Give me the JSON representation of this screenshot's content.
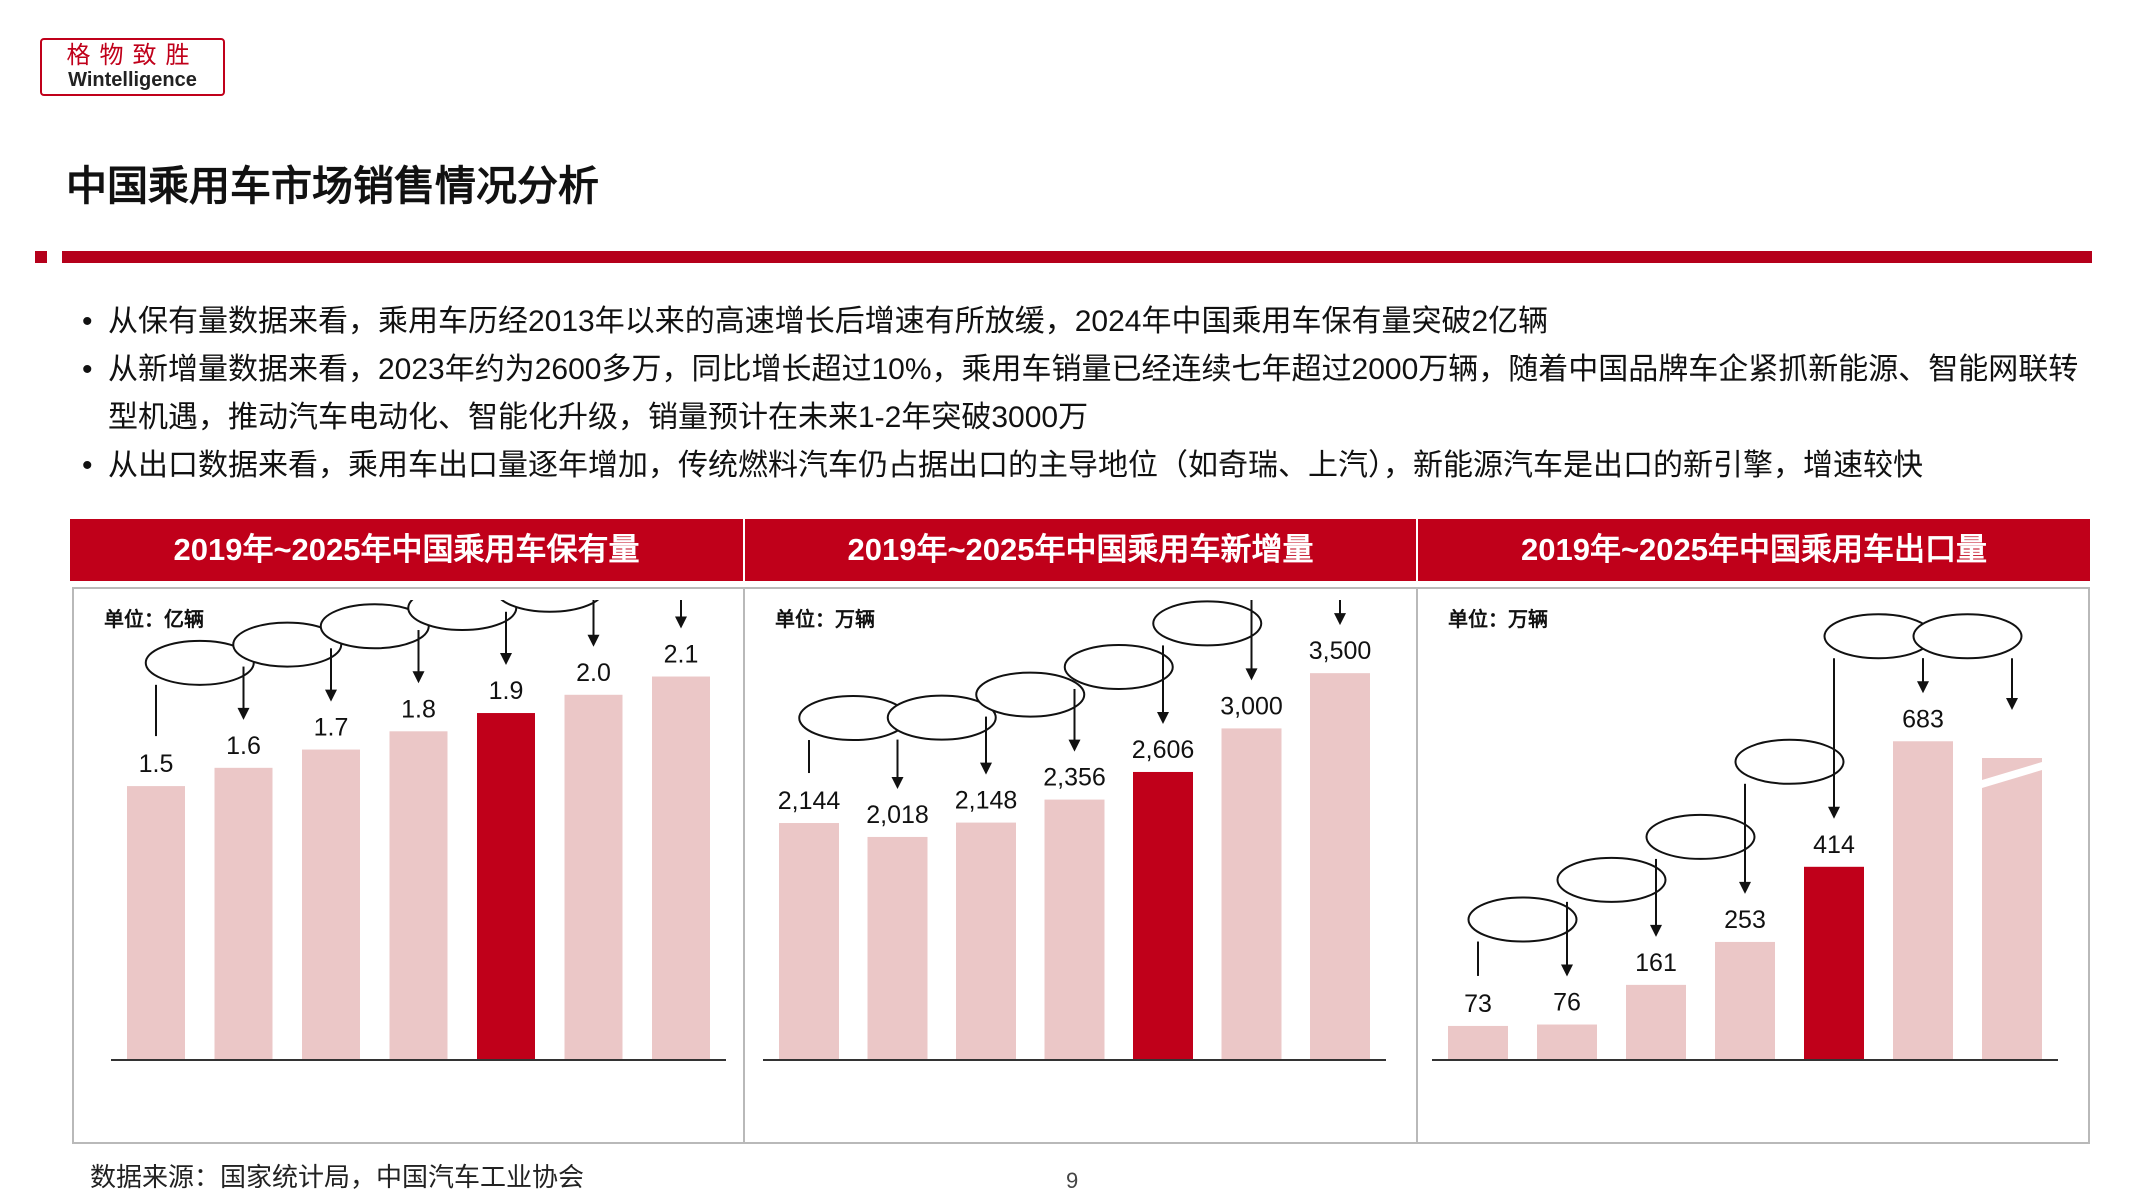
{
  "logo": {
    "cn": "格物致胜",
    "en": "Wintelligence"
  },
  "page": {
    "title": "中国乘用车市场销售情况分析",
    "source": "数据来源：国家统计局，中国汽车工业协会",
    "page_number": "9"
  },
  "bullets": [
    "从保有量数据来看，乘用车历经2013年以来的高速增长后增速有所放缓，2024年中国乘用车保有量突破2亿辆",
    "从新增量数据来看，2023年约为2600多万，同比增长超过10%，乘用车销量已经连续七年超过2000万辆，随着中国品牌车企紧抓新能源、智能网联转型机遇，推动汽车电动化、智能化升级，销量预计在未来1-2年突破3000万",
    "从出口数据来看，乘用车出口量逐年增加，传统燃料汽车仍占据出口的主导地位（如奇瑞、上汽），新能源汽车是出口的新引擎，增速较快"
  ],
  "colors": {
    "accent": "#c0001a",
    "bar_light": "#ebc7c7",
    "bar_highlight": "#c0001a"
  },
  "chart_data": [
    {
      "type": "bar",
      "title": "2019年~2025年中国乘用车保有量",
      "unit_label": "单位：亿辆",
      "values": [
        1.5,
        1.6,
        1.7,
        1.8,
        1.9,
        2.0,
        2.1
      ],
      "labels": [
        "1.5",
        "1.6",
        "1.7",
        "1.8",
        "1.9",
        "2.0",
        "2.1"
      ],
      "highlight_index": 4,
      "ylim": [
        0,
        2.3
      ]
    },
    {
      "type": "bar",
      "title": "2019年~2025年中国乘用车新增量",
      "unit_label": "单位：万辆",
      "values": [
        2144,
        2018,
        2148,
        2356,
        2606,
        3000,
        3500
      ],
      "labels": [
        "2,144",
        "2,018",
        "2,148",
        "2,356",
        "2,606",
        "3,000",
        "3,500"
      ],
      "highlight_index": 4,
      "ylim": [
        0,
        3800
      ]
    },
    {
      "type": "bar",
      "title": "2019年~2025年中国乘用车出口量",
      "unit_label": "单位：万辆",
      "values": [
        73,
        76,
        161,
        253,
        414,
        683,
        null
      ],
      "labels": [
        "73",
        "76",
        "161",
        "253",
        "414",
        "683",
        ""
      ],
      "highlight_index": 4,
      "ylim": [
        0,
        900
      ],
      "last_bar_broken": true
    }
  ]
}
